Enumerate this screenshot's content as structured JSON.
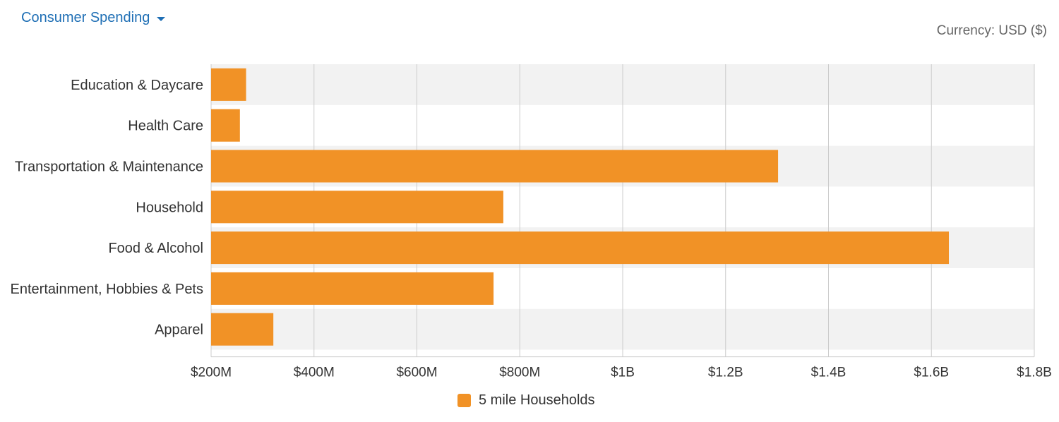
{
  "header": {
    "dropdown_label": "Consumer Spending",
    "currency_label": "Currency: USD ($)"
  },
  "colors": {
    "bar": "#F19226",
    "band": "#F2F2F2",
    "grid": "#CCCCCC",
    "link": "#1F6FB5"
  },
  "chart_data": {
    "type": "bar",
    "orientation": "horizontal",
    "categories": [
      "Education & Daycare",
      "Health Care",
      "Transportation & Maintenance",
      "Household",
      "Food & Alcohol",
      "Entertainment, Hobbies & Pets",
      "Apparel"
    ],
    "series": [
      {
        "name": "5 mile Households",
        "values": [
          268000000,
          256000000,
          1302000000,
          768000000,
          1634000000,
          749000000,
          321000000
        ]
      }
    ],
    "xlim": [
      200000000,
      1800000000
    ],
    "x_ticks": [
      200000000,
      400000000,
      600000000,
      800000000,
      1000000000,
      1200000000,
      1400000000,
      1600000000,
      1800000000
    ],
    "x_tick_labels": [
      "$200M",
      "$400M",
      "$600M",
      "$800M",
      "$1B",
      "$1.2B",
      "$1.4B",
      "$1.6B",
      "$1.8B"
    ],
    "grid": true,
    "legend": "bottom-center"
  }
}
